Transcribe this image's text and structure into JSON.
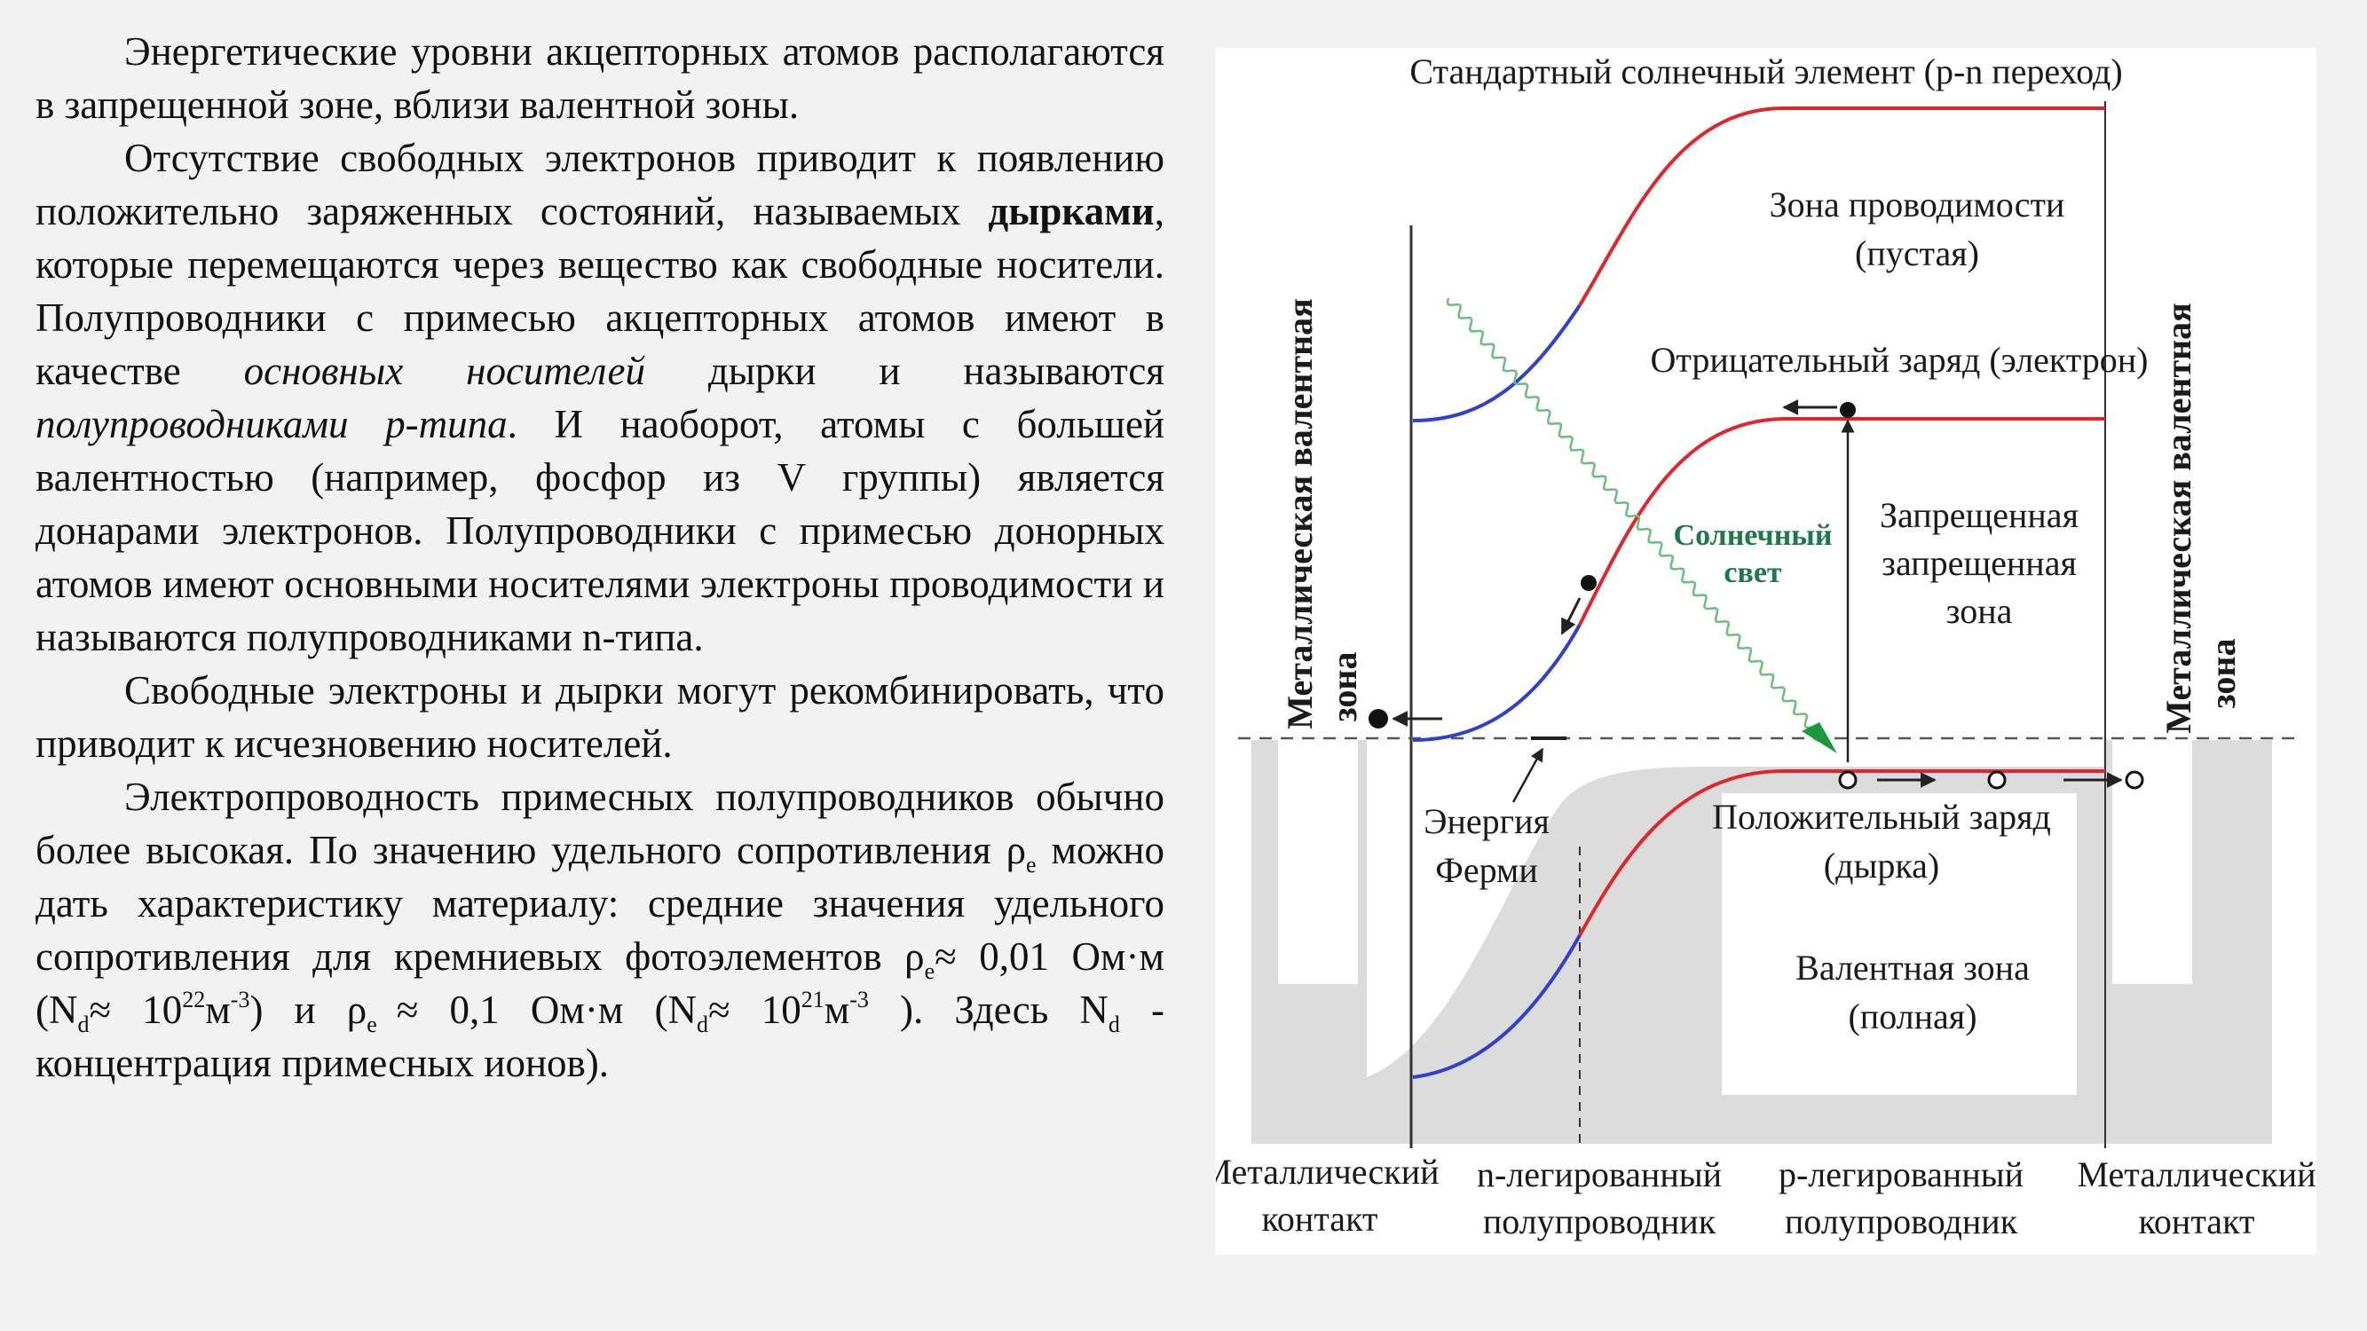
{
  "text": {
    "p1": "Энергетические уровни акцепторных атомов располагаются в запрещенной зоне, вблизи валентной зоны.",
    "p2_a": "Отсутствие свободных электронов приводит к появлению положительно заряженных состояний, называемых ",
    "p2_bold": "дырками",
    "p2_b": ", которые перемещаются через вещество как свободные носители. Полупроводники с примесью акцепторных атомов имеют в качестве ",
    "p2_it1": "основных носителей",
    "p2_c": " дырки и называются ",
    "p2_it2": "полупроводниками p-типа",
    "p2_d": ". И наоборот, атомы с большей валентностью (например, фосфор из V группы) является донарами электронов. Полупроводники с примесью донорных атомов имеют основными носителями электроны проводимости и называются полупроводниками n-типа.",
    "p3": "Свободные электроны и дырки могут рекомбинировать, что приводит к исчезновению носителей.",
    "p4_a": "Электропроводность примесных полупроводников обычно более высокая. По значению удельного сопротивления ρ",
    "sub_e": "e",
    "p4_b": " можно дать характеристику материалу: средние значения удельного сопротивления для кремниевых фотоэлементов ρ",
    "p4_c": "≈ 0,01 Ом·м (N",
    "sub_d": "d",
    "p4_d": "≈ 10",
    "sup_22": "22",
    "p4_e": "м",
    "sup_m3": "-3",
    "p4_f": ") и ρ",
    "p4_g": "≈ 0,1 Ом·м (N",
    "p4_h": "≈ 10",
    "sup_21": "21",
    "p4_i": "м",
    "p4_j": " ). Здесь N",
    "p4_k": " - концентрация примесных ионов)."
  },
  "diagram": {
    "title": "Стандартный солнечный элемент (p-n переход)",
    "conduction_band": "Зона проводимости",
    "conduction_band_note": "(пустая)",
    "negative_charge": "Отрицательный заряд (электрон)",
    "sunlight_1": "Солнечный",
    "sunlight_2": "свет",
    "forbidden_1": "Запрещенная",
    "forbidden_2": "запрещенная",
    "forbidden_3": "зона",
    "fermi_1": "Энергия",
    "fermi_2": "Ферми",
    "positive_charge": "Положительный заряд",
    "positive_charge_note": "(дырка)",
    "valence_band": "Валентная зона",
    "valence_band_note": "(полная)",
    "metal_valence_1": "Металлическая валентная",
    "metal_valence_2": "зона",
    "metal_contact_1": "Металлический",
    "metal_contact_2": "контакт",
    "n_doped_1": "n-легированный",
    "n_doped_2": "полупроводник",
    "p_doped_1": "p-легированный",
    "p_doped_2": "полупроводник",
    "colors": {
      "p_side_curve": "#e0262b",
      "n_side_curve": "#2f3fd0",
      "sunlight": "#6bbf7a",
      "fill": "#dcdcdc"
    }
  }
}
